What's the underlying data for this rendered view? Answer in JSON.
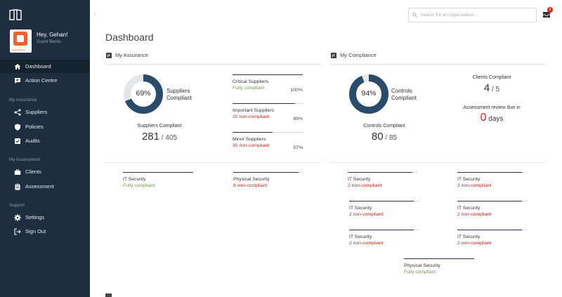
{
  "sidebar": {
    "greeting": "Hey, Gehan!",
    "company": "Sushi Bento",
    "avatar_brand": "SUSHI BENTO",
    "nav": [
      {
        "label": "Dashboard",
        "icon": "home-icon"
      },
      {
        "label": "Action Centre",
        "icon": "message-icon"
      },
      {
        "label": "Suppliers",
        "icon": "share-icon"
      },
      {
        "label": "Policies",
        "icon": "shield-icon"
      },
      {
        "label": "Audits",
        "icon": "checkbox-icon"
      },
      {
        "label": "Clients",
        "icon": "briefcase-icon"
      },
      {
        "label": "Assessment",
        "icon": "clipboard-icon"
      },
      {
        "label": "Settings",
        "icon": "gear-icon"
      },
      {
        "label": "Sign Out",
        "icon": "signout-icon"
      }
    ],
    "sections": {
      "assurance": "My Assurance",
      "assessment": "My Assessment",
      "support": "Support"
    }
  },
  "topbar": {
    "collapse": "‹",
    "search_placeholder": "Search for an organisation...",
    "notification_count": "6"
  },
  "page_title": "Dashboard",
  "assurance": {
    "title": "My Assurance",
    "donut_percent": 69,
    "donut_text": "69%",
    "donut_label_1": "Suppliers",
    "donut_label_2": "Compliant",
    "caption": "Suppliers Compliant",
    "count": "281",
    "total": " / 405",
    "categories": [
      {
        "name": "Critical Suppliers",
        "status": "Fully compliant",
        "pct": "100%",
        "fill": 1.0,
        "ok": true
      },
      {
        "name": "Important Suppliers",
        "status": "20 non-compliant",
        "pct": "89%",
        "fill": 0.89,
        "ok": false
      },
      {
        "name": "Minor Suppliers",
        "status": "30 non-compliant",
        "pct": "57%",
        "fill": 0.57,
        "ok": false
      }
    ],
    "security": [
      {
        "name": "IT Security",
        "status": "Fully compliant",
        "ok": true,
        "fill": 1.0
      },
      {
        "name": "Physical Security",
        "status": "8 non-compliant",
        "ok": false,
        "fill": 0.93
      }
    ]
  },
  "compliance": {
    "title": "My Compliance",
    "donut_percent": 94,
    "donut_text": "94%",
    "donut_label_1": "Controls",
    "donut_label_2": "Compliant",
    "caption": "Controls Compliant",
    "count": "80",
    "total": " / 85",
    "clients_caption": "Clients Compliant",
    "clients_count": "4",
    "clients_total": " / 5",
    "review_caption": "Assessment review due in",
    "review_days": "0",
    "review_unit": " days",
    "security": [
      {
        "name": "IT Security",
        "status": "2 non-compliant",
        "ok": false,
        "fill": 0.92
      },
      {
        "name": "IT Security",
        "status": "2 non-compliant",
        "ok": false,
        "fill": 0.92
      },
      {
        "name": "IT Security",
        "status": "2 non-compliant",
        "ok": false,
        "fill": 0.92
      },
      {
        "name": "IT Security",
        "status": "2 non-compliant",
        "ok": false,
        "fill": 0.92
      },
      {
        "name": "IT Security",
        "status": "2 non-compliant",
        "ok": false,
        "fill": 0.92
      },
      {
        "name": "IT Security",
        "status": "2 non-compliant",
        "ok": false,
        "fill": 0.92
      },
      {
        "name": "Physical Security",
        "status": "Fully compliant",
        "ok": true,
        "fill": 1.0
      }
    ]
  },
  "colors": {
    "sidebar": "#1c2e40",
    "donut": "#2b4b6b",
    "green": "#6c9a3d",
    "red": "#c0261d"
  }
}
